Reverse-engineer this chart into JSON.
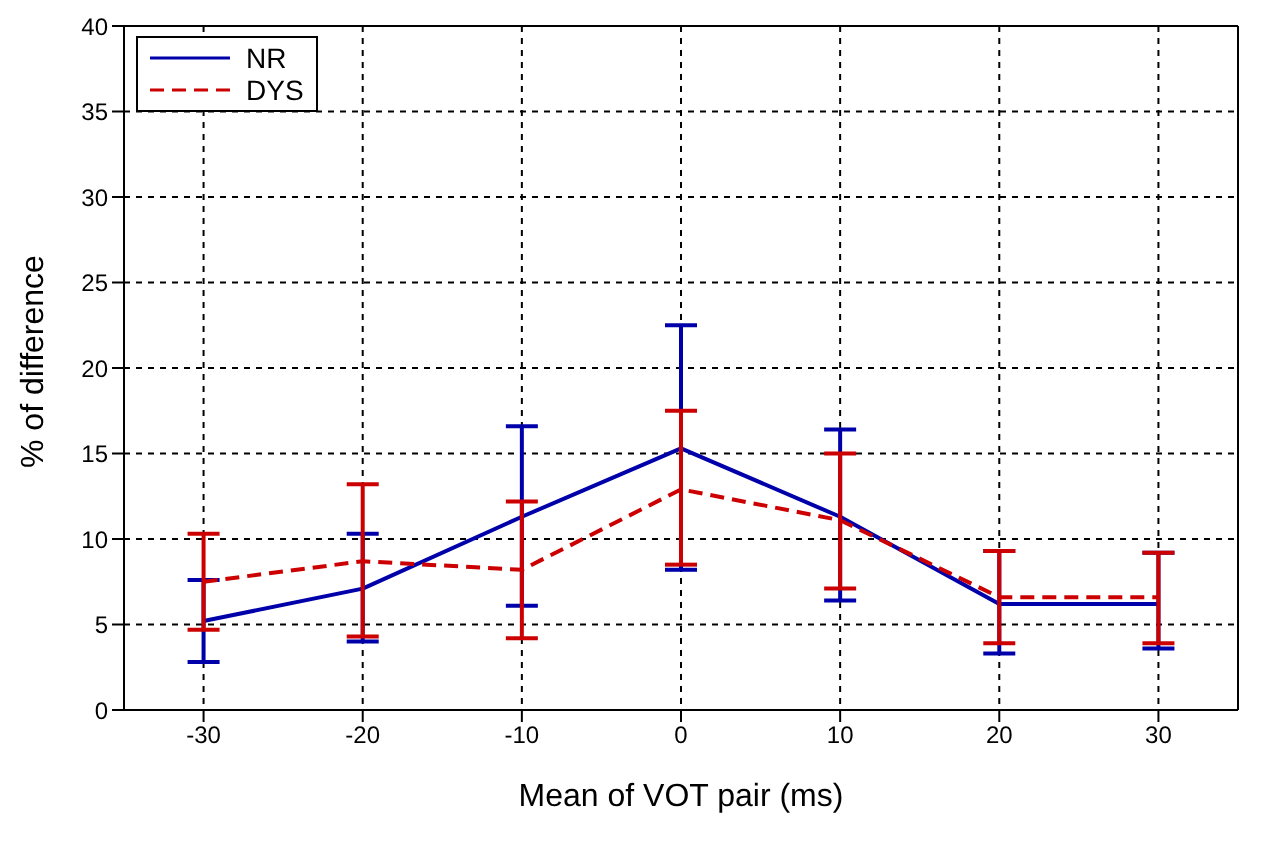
{
  "chart_data": {
    "type": "line",
    "xlabel": "Mean of VOT pair (ms)",
    "ylabel": "% of difference",
    "x": [
      -30,
      -20,
      -10,
      0,
      10,
      20,
      30
    ],
    "series": [
      {
        "name": "NR",
        "color": "#0000aa",
        "line_style": "solid",
        "values": [
          5.2,
          7.1,
          11.3,
          15.3,
          11.3,
          6.2,
          6.2
        ],
        "errors": [
          [
            2.8,
            7.6
          ],
          [
            4.0,
            10.3
          ],
          [
            6.1,
            16.6
          ],
          [
            8.2,
            22.5
          ],
          [
            6.4,
            16.4
          ],
          [
            3.3,
            9.3
          ],
          [
            3.6,
            9.2
          ]
        ]
      },
      {
        "name": "DYS",
        "color": "#cc0000",
        "line_style": "dashed",
        "values": [
          7.5,
          8.7,
          8.2,
          12.9,
          11.1,
          6.6,
          6.6
        ],
        "errors": [
          [
            4.7,
            10.3
          ],
          [
            4.3,
            13.2
          ],
          [
            4.2,
            12.2
          ],
          [
            8.5,
            17.5
          ],
          [
            7.1,
            15.0
          ],
          [
            3.9,
            9.3
          ],
          [
            3.9,
            9.2
          ]
        ]
      }
    ],
    "xlim": [
      -35,
      35
    ],
    "xticks": [
      -30,
      -20,
      -10,
      0,
      10,
      20,
      30
    ],
    "ylim": [
      0,
      40
    ],
    "yticks": [
      0,
      5,
      10,
      15,
      20,
      25,
      30,
      35,
      40
    ],
    "grid": true,
    "legend": "top left",
    "marker": "none"
  }
}
